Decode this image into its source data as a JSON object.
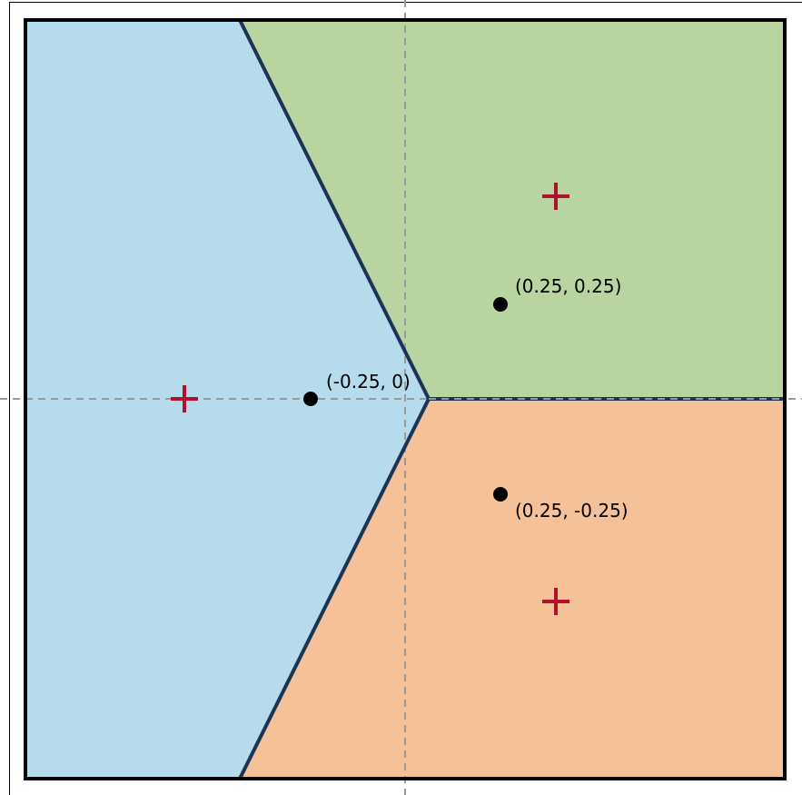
{
  "points": [
    {
      "label": "(-0.25, 0)"
    },
    {
      "label": "(0.25, 0.25)"
    },
    {
      "label": "(0.25, -0.25)"
    }
  ]
}
